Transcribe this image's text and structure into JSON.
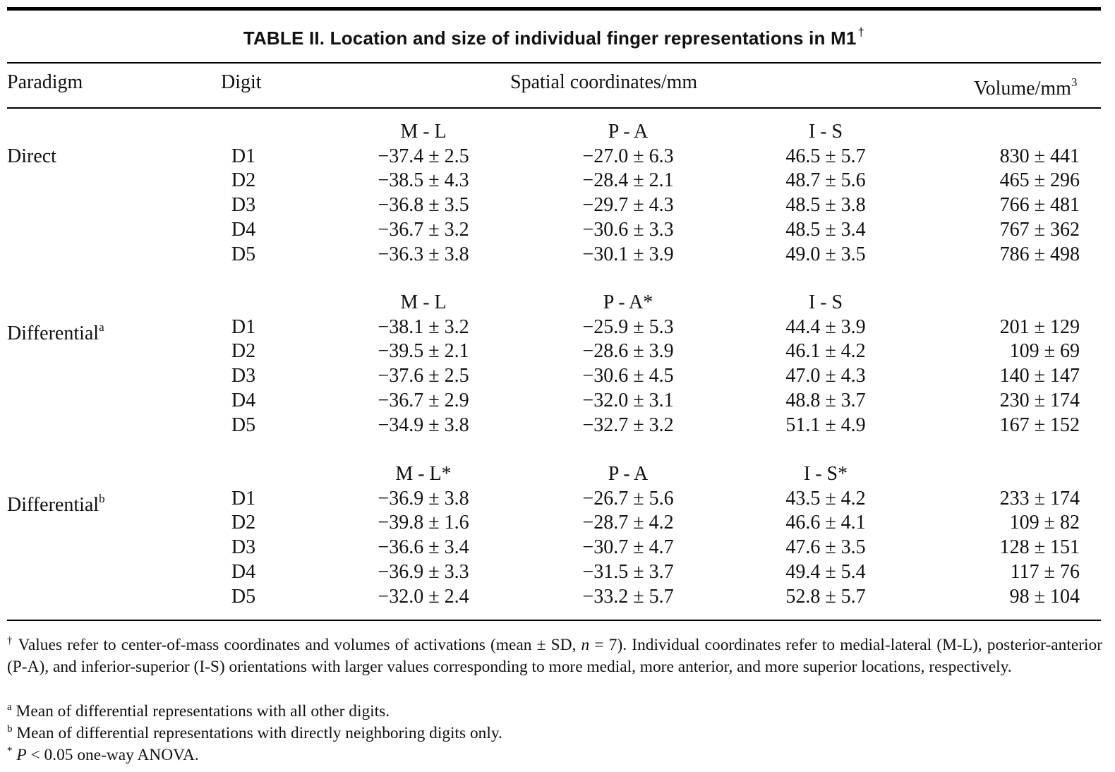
{
  "title": "TABLE II. Location and size of individual finger representations in M1",
  "title_mark": "†",
  "headers": {
    "paradigm": "Paradigm",
    "digit": "Digit",
    "spatial": "Spatial coordinates/mm",
    "volume": "Volume/mm",
    "volume_sup": "3"
  },
  "groups": [
    {
      "name": "Direct",
      "name_sup": "",
      "subheaders": [
        "M - L",
        "P - A",
        "I - S"
      ],
      "rows": [
        {
          "digit": "D1",
          "ml": "−37.4 ± 2.5",
          "pa": "−27.0 ± 6.3",
          "is": "46.5 ± 5.7",
          "vol": "830 ± 441"
        },
        {
          "digit": "D2",
          "ml": "−38.5 ± 4.3",
          "pa": "−28.4 ± 2.1",
          "is": "48.7 ± 5.6",
          "vol": "465 ± 296"
        },
        {
          "digit": "D3",
          "ml": "−36.8 ± 3.5",
          "pa": "−29.7 ± 4.3",
          "is": "48.5 ± 3.8",
          "vol": "766 ± 481"
        },
        {
          "digit": "D4",
          "ml": "−36.7 ± 3.2",
          "pa": "−30.6 ± 3.3",
          "is": "48.5 ± 3.4",
          "vol": "767 ± 362"
        },
        {
          "digit": "D5",
          "ml": "−36.3 ± 3.8",
          "pa": "−30.1 ± 3.9",
          "is": "49.0 ± 3.5",
          "vol": "786 ± 498"
        }
      ]
    },
    {
      "name": "Differential",
      "name_sup": "a",
      "subheaders": [
        "M - L",
        "P - A*",
        "I - S"
      ],
      "rows": [
        {
          "digit": "D1",
          "ml": "−38.1 ± 3.2",
          "pa": "−25.9 ± 5.3",
          "is": "44.4 ± 3.9",
          "vol": "201 ± 129"
        },
        {
          "digit": "D2",
          "ml": "−39.5 ± 2.1",
          "pa": "−28.6 ± 3.9",
          "is": "46.1 ± 4.2",
          "vol": "109 ± 69"
        },
        {
          "digit": "D3",
          "ml": "−37.6 ± 2.5",
          "pa": "−30.6 ± 4.5",
          "is": "47.0 ± 4.3",
          "vol": "140 ± 147"
        },
        {
          "digit": "D4",
          "ml": "−36.7 ± 2.9",
          "pa": "−32.0 ± 3.1",
          "is": "48.8 ± 3.7",
          "vol": "230 ± 174"
        },
        {
          "digit": "D5",
          "ml": "−34.9 ± 3.8",
          "pa": "−32.7 ± 3.2",
          "is": "51.1 ± 4.9",
          "vol": "167 ± 152"
        }
      ]
    },
    {
      "name": "Differential",
      "name_sup": "b",
      "subheaders": [
        "M - L*",
        "P - A",
        "I - S*"
      ],
      "rows": [
        {
          "digit": "D1",
          "ml": "−36.9 ± 3.8",
          "pa": "−26.7 ± 5.6",
          "is": "43.5 ± 4.2",
          "vol": "233 ± 174"
        },
        {
          "digit": "D2",
          "ml": "−39.8 ± 1.6",
          "pa": "−28.7 ± 4.2",
          "is": "46.6 ± 4.1",
          "vol": "109 ± 82"
        },
        {
          "digit": "D3",
          "ml": "−36.6 ± 3.4",
          "pa": "−30.7 ± 4.7",
          "is": "47.6 ± 3.5",
          "vol": "128 ± 151"
        },
        {
          "digit": "D4",
          "ml": "−36.9 ± 3.3",
          "pa": "−31.5 ± 3.7",
          "is": "49.4 ± 5.4",
          "vol": "117 ± 76"
        },
        {
          "digit": "D5",
          "ml": "−32.0 ± 2.4",
          "pa": "−33.2 ± 5.7",
          "is": "52.8 ± 5.7",
          "vol": "98 ± 104"
        }
      ]
    }
  ],
  "footnotes": {
    "dagger": {
      "mark": "†",
      "text_a": " Values refer to center-of-mass coordinates and volumes of activations (mean ± SD, ",
      "n": "n",
      "text_b": " = 7). Individual coordinates refer to medial-lateral (M-L), posterior-anterior (P-A), and inferior-superior (I-S) orientations with larger values corresponding to more medial, more anterior, and more superior locations, respectively."
    },
    "a": {
      "mark": "a",
      "text": " Mean of differential representations with all other digits."
    },
    "b": {
      "mark": "b",
      "text": " Mean of differential representations with directly neighboring digits only."
    },
    "star": {
      "mark": "*",
      "p": "P",
      "text": " < 0.05 one-way ANOVA."
    }
  }
}
